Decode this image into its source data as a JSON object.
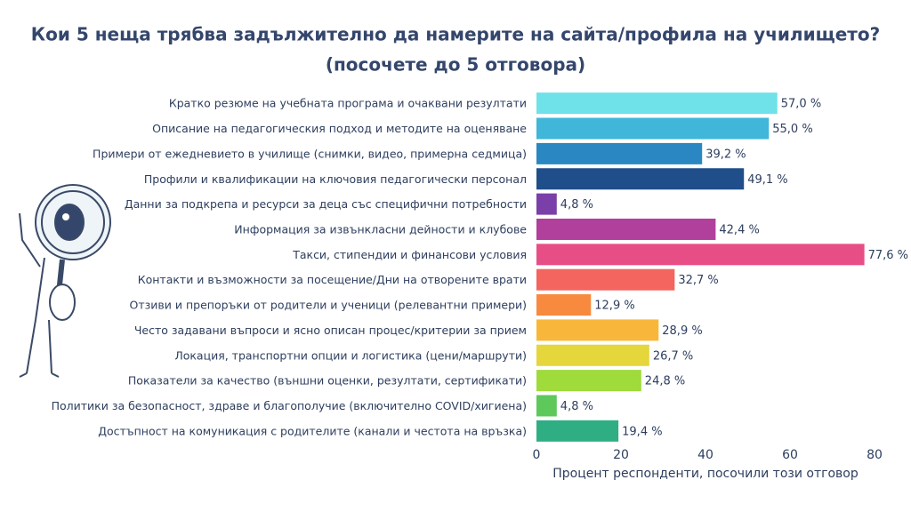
{
  "chart_data": {
    "type": "barh",
    "title": "Кои 5 неща трябва задължително да намерите на сайта/профила на училището?",
    "subtitle": "(посочете до 5 отговора)",
    "x_label": "Процент респонденти, посочили този отговор",
    "categories": [
      "Кратко резюме на учебната програма и очаквани резултати",
      "Описание на педагогическия подход и методите на оценяване",
      "Примери от ежедневието в училище (снимки, видео, примерна седмица)",
      "Профили и квалификации на ключовия педагогически персонал",
      "Данни за подкрепа и ресурси за деца със специфични потребности",
      "Информация за извънкласни дейности и клубове",
      "Такси, стипендии и финансови условия",
      "Контакти и възможности за посещение/Дни на отворените врати",
      "Отзиви и препоръки от родители и ученици (релевантни примери)",
      "Често задавани въпроси и ясно описан процес/критерии за прием",
      "Локация, транспортни опции и логистика (цени/маршрути)",
      "Показатели за качество (външни оценки, резултати, сертификати)",
      "Политики за безопасност, здраве и благополучие (включително COVID/хигиена)",
      "Достъпност на комуникация с родителите (канали и честота на връзка)"
    ],
    "values": [
      57.0,
      55.0,
      39.2,
      49.1,
      4.8,
      42.4,
      77.6,
      32.7,
      12.9,
      28.9,
      26.7,
      24.8,
      4.8,
      19.4
    ],
    "value_labels": [
      "57,0 %",
      "55,0 %",
      "39,2 %",
      "49,1 %",
      "4,8 %",
      "42,4 %",
      "77,6 %",
      "32,7 %",
      "12,9 %",
      "28,9 %",
      "26,7 %",
      "24,8 %",
      "4,8 %",
      "19,4 %"
    ],
    "colors": [
      "#6ee2e8",
      "#40b6d8",
      "#2a87c2",
      "#1f4e8a",
      "#7a3fa8",
      "#b13f9c",
      "#e84e86",
      "#f3655e",
      "#f78a3f",
      "#f8b73a",
      "#e4d63b",
      "#9edb3b",
      "#5ec85b",
      "#2fae84"
    ],
    "xlim": [
      0,
      84
    ],
    "xticks": [
      0,
      20,
      40,
      60,
      80
    ],
    "grid": false
  }
}
